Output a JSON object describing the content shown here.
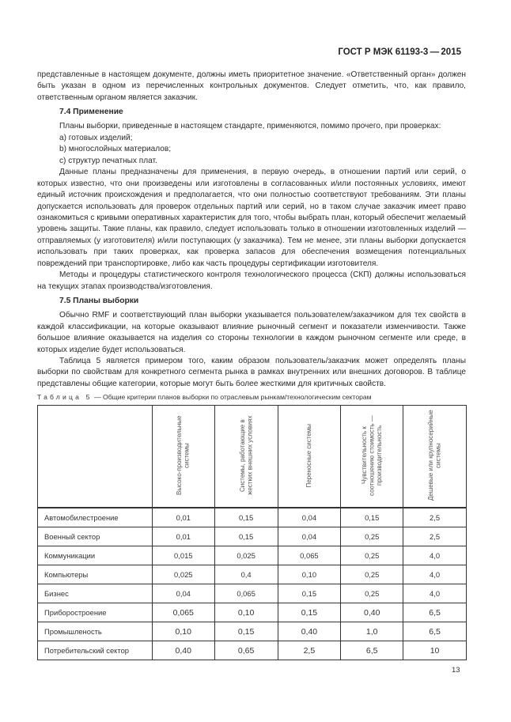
{
  "header": {
    "doc_id": "ГОСТ Р МЭК 61193-3 — 2015"
  },
  "intro": {
    "text": "представленные в настоящем документе, должны иметь приоритетное значение. «Ответственный орган» должен быть указан в одном из перечисленных контрольных документов. Следует отметить, что, как правило, ответственным органом является заказчик."
  },
  "section_7_4": {
    "title": "7.4 Применение",
    "lead": "Планы выборки, приведенные в настоящем стандарте, применяются, помимо прочего, при проверках:",
    "items": [
      "a) готовых изделий;",
      "b) многослойных материалов;",
      "c) структур печатных плат."
    ],
    "p1": "Данные планы предназначены для применения, в первую очередь, в отношении партий или серий, о которых известно, что они произведены или изготовлены в согласованных и/или постоянных условиях, имеют единый источник происхождения и предполагается, что они полностью соответствуют требованиям. Эти планы допускается использовать для проверок отдельных партий или серий, но в таком случае заказчик имеет право ознакомиться с кривыми оперативных характеристик для того, чтобы выбрать план, который обеспечит желаемый уровень защиты. Такие планы, как правило, следует использовать только в отношении изготовленных изделий — отправляемых (у изготовителя) и/или поступающих (у заказчика). Тем не менее, эти планы выборки допускается использовать при таких проверках, как проверка запасов для обеспечения возмещения потенциальных повреждений при транспортировке, либо как часть процедуры сертификации изготовителя.",
    "p2": "Методы и процедуры статистического контроля технологического процесса (СКП) должны использоваться на текущих этапах производства/изготовления."
  },
  "section_7_5": {
    "title": "7.5 Планы выборки",
    "p1": "Обычно RMF и соответствующий план выборки указывается пользователем/заказчиком для тех свойств в каждой классификации, на которые оказывают влияние рыночный сегмент и показатели изменчивости. Также большое влияние оказывается на изделия со стороны технологии в каждом рыночном сегменте или среде, в которых изделие будет использоваться.",
    "p2": "Таблица 5 является примером того, каким образом пользователь/заказчик может определять планы выборки по свойствам для конкретного сегмента рынка в рамках внутренних или внешних договоров. В таблице представлены общие категории, которые могут быть более жесткими для критичных свойств."
  },
  "table": {
    "caption_label": "Таблица 5",
    "caption_text": "— Общие критерии планов выборки по отраслевым рынкам/технологическим секторам",
    "columns": [
      "Высоко-производительные системы",
      "Системы, работающие в жестких внешних условиях",
      "Переносные системы",
      "Чувствительность к соотношению стоимость — производительность",
      "Дешевые или крупносерийные системы"
    ],
    "rows": [
      {
        "name": "Автомобилестроение",
        "values": [
          "0,01",
          "0,15",
          "0,04",
          "0,15",
          "2,5"
        ]
      },
      {
        "name": "Военный сектор",
        "values": [
          "0,01",
          "0,15",
          "0,04",
          "0,25",
          "2,5"
        ]
      },
      {
        "name": "Коммуникации",
        "values": [
          "0,015",
          "0,025",
          "0,065",
          "0,25",
          "4,0"
        ]
      },
      {
        "name": "Компьютеры",
        "values": [
          "0,025",
          "0,4",
          "0,10",
          "0,25",
          "4,0"
        ]
      },
      {
        "name": "Бизнес",
        "values": [
          "0,04",
          "0,065",
          "0,15",
          "0,25",
          "4,0"
        ]
      },
      {
        "name": "Приборостроение",
        "values": [
          "0,065",
          "0,10",
          "0,15",
          "0,40",
          "6,5"
        ]
      },
      {
        "name": "Промышленость",
        "values": [
          "0,10",
          "0,15",
          "0,40",
          "1,0",
          "6,5"
        ]
      },
      {
        "name": "Потребительский сектор",
        "values": [
          "0,40",
          "0,65",
          "2,5",
          "6,5",
          "10"
        ]
      }
    ]
  },
  "footer": {
    "page_number": "13"
  }
}
